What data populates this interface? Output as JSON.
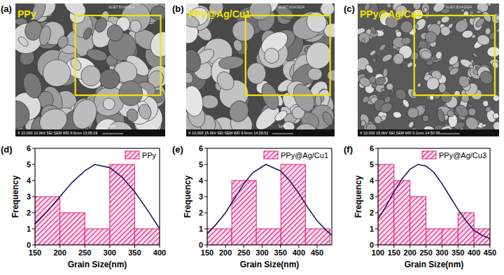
{
  "images": [
    {
      "panel_label": "(a)",
      "sample_label": "PPy",
      "info": "X 10,000   10.0kV  SEI     SEM   WD 9.9mm  13:05:19",
      "scale_bar": "1μm",
      "lab": "SLIET  8/14/2024"
    },
    {
      "panel_label": "(b)",
      "sample_label": "PPy@Ag/Cu1",
      "info": "X 10,000   15.0kV  SEI     SEM   WD 9.9mm  14:26:51",
      "scale_bar": "1μm",
      "lab": "SLIET  8/14/2024"
    },
    {
      "panel_label": "(c)",
      "sample_label": "PPy@Ag/Cu3",
      "info": "X 10,000   15.0kV  SEI     SEM   WD 9.1mm  14:50:38",
      "scale_bar": "1μm",
      "lab": "SLIET  8/14/2024"
    }
  ],
  "chart_data": [
    {
      "type": "histogram",
      "panel_label": "(d)",
      "x_label": "Grain Size(nm)",
      "y_label": "Frequency",
      "bins": [
        150,
        200,
        250,
        300,
        350,
        400
      ],
      "series": [
        {
          "name": "PPy",
          "type": "bar",
          "color": "#e6197e",
          "values": [
            3,
            2,
            1,
            5,
            1
          ]
        },
        {
          "type": "line",
          "color": "#1c1c5c",
          "x": [
            150,
            175,
            200,
            225,
            250,
            270,
            300,
            325,
            350,
            375,
            400
          ],
          "values": [
            1.3,
            2.1,
            3.0,
            3.9,
            4.6,
            5.0,
            4.8,
            4.2,
            3.3,
            2.2,
            1.0
          ]
        }
      ],
      "xlim": [
        150,
        400
      ],
      "xticks": [
        150,
        200,
        250,
        300,
        350,
        400
      ],
      "ylim": [
        0,
        6
      ],
      "yticks": [
        0,
        1,
        2,
        3,
        4,
        5,
        6
      ],
      "legend": "upper right"
    },
    {
      "type": "histogram",
      "panel_label": "(e)",
      "x_label": "Grain Size(nm)",
      "y_label": "Frequency",
      "bins": [
        150,
        217,
        284,
        351,
        418,
        485
      ],
      "series": [
        {
          "name": "PPy@Ag/Cu1",
          "type": "bar",
          "color": "#e6197e",
          "values": [
            1,
            4,
            1,
            5,
            1
          ]
        },
        {
          "type": "line",
          "color": "#1c1c5c",
          "x": [
            150,
            175,
            200,
            225,
            250,
            275,
            310,
            350,
            375,
            400,
            425,
            450,
            475,
            490
          ],
          "values": [
            0.7,
            1.3,
            2.0,
            2.9,
            3.8,
            4.5,
            5.0,
            4.6,
            4.0,
            3.2,
            2.3,
            1.5,
            0.9,
            0.6
          ]
        }
      ],
      "xlim": [
        150,
        490
      ],
      "xticks": [
        150,
        200,
        250,
        300,
        350,
        400,
        450
      ],
      "ylim": [
        0,
        6
      ],
      "yticks": [
        0,
        1,
        2,
        3,
        4,
        5,
        6
      ],
      "legend": "upper right"
    },
    {
      "type": "histogram",
      "panel_label": "(f)",
      "x_label": "Grain Size(nm)",
      "y_label": "Frequency",
      "bins": [
        100,
        150,
        200,
        250,
        300,
        350,
        400,
        450
      ],
      "series": [
        {
          "name": "PPy@Ag/Cu3",
          "type": "bar",
          "color": "#e6197e",
          "values": [
            5,
            4,
            3,
            1,
            1,
            2,
            1
          ]
        },
        {
          "type": "line",
          "color": "#1c1c5c",
          "x": [
            100,
            125,
            150,
            175,
            200,
            225,
            250,
            275,
            300,
            325,
            350,
            375,
            400,
            425,
            450
          ],
          "values": [
            1.6,
            2.4,
            3.3,
            4.1,
            4.7,
            5.0,
            4.9,
            4.5,
            3.8,
            3.0,
            2.2,
            1.5,
            0.9,
            0.6,
            0.4
          ]
        }
      ],
      "xlim": [
        100,
        450
      ],
      "xticks": [
        100,
        150,
        200,
        250,
        300,
        350,
        400,
        450
      ],
      "ylim": [
        0,
        6
      ],
      "yticks": [
        0,
        1,
        2,
        3,
        4,
        5,
        6
      ],
      "legend": "upper right"
    }
  ]
}
